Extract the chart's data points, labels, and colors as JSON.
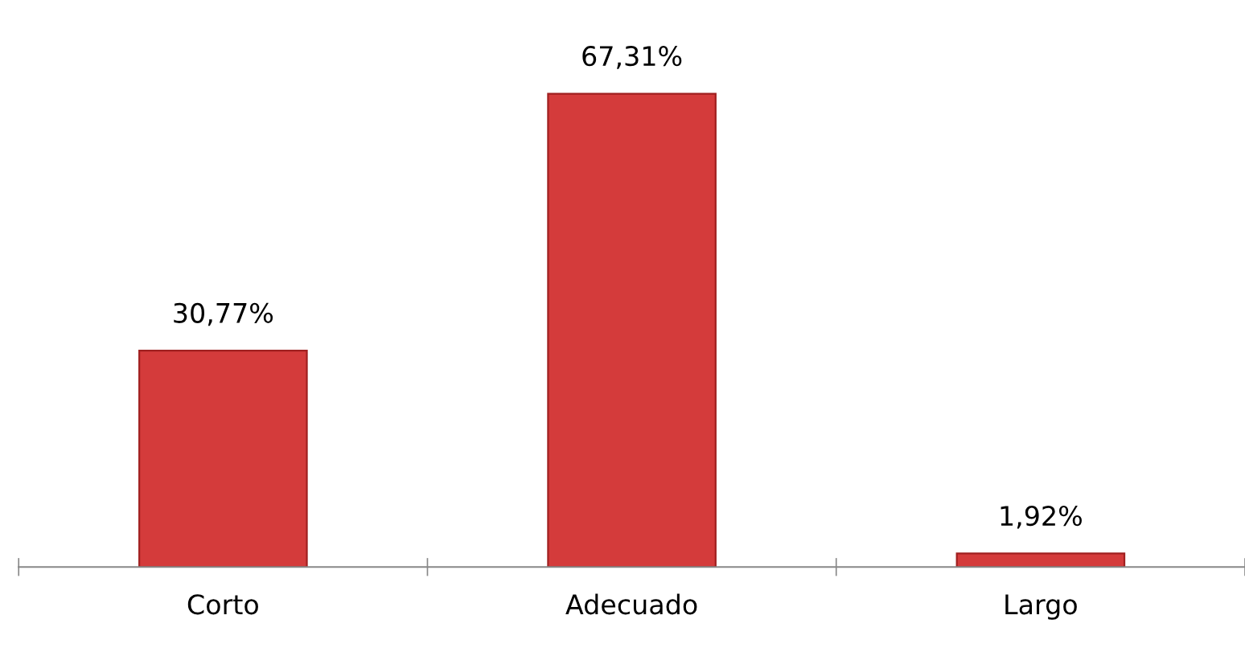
{
  "chart_data": {
    "type": "bar",
    "categories": [
      "Corto",
      "Adecuado",
      "Largo"
    ],
    "values": [
      30.77,
      67.31,
      1.92
    ],
    "value_labels": [
      "30,77%",
      "67,31%",
      "1,92%"
    ],
    "color": "#d43b3b",
    "grid": false,
    "legend": false
  }
}
